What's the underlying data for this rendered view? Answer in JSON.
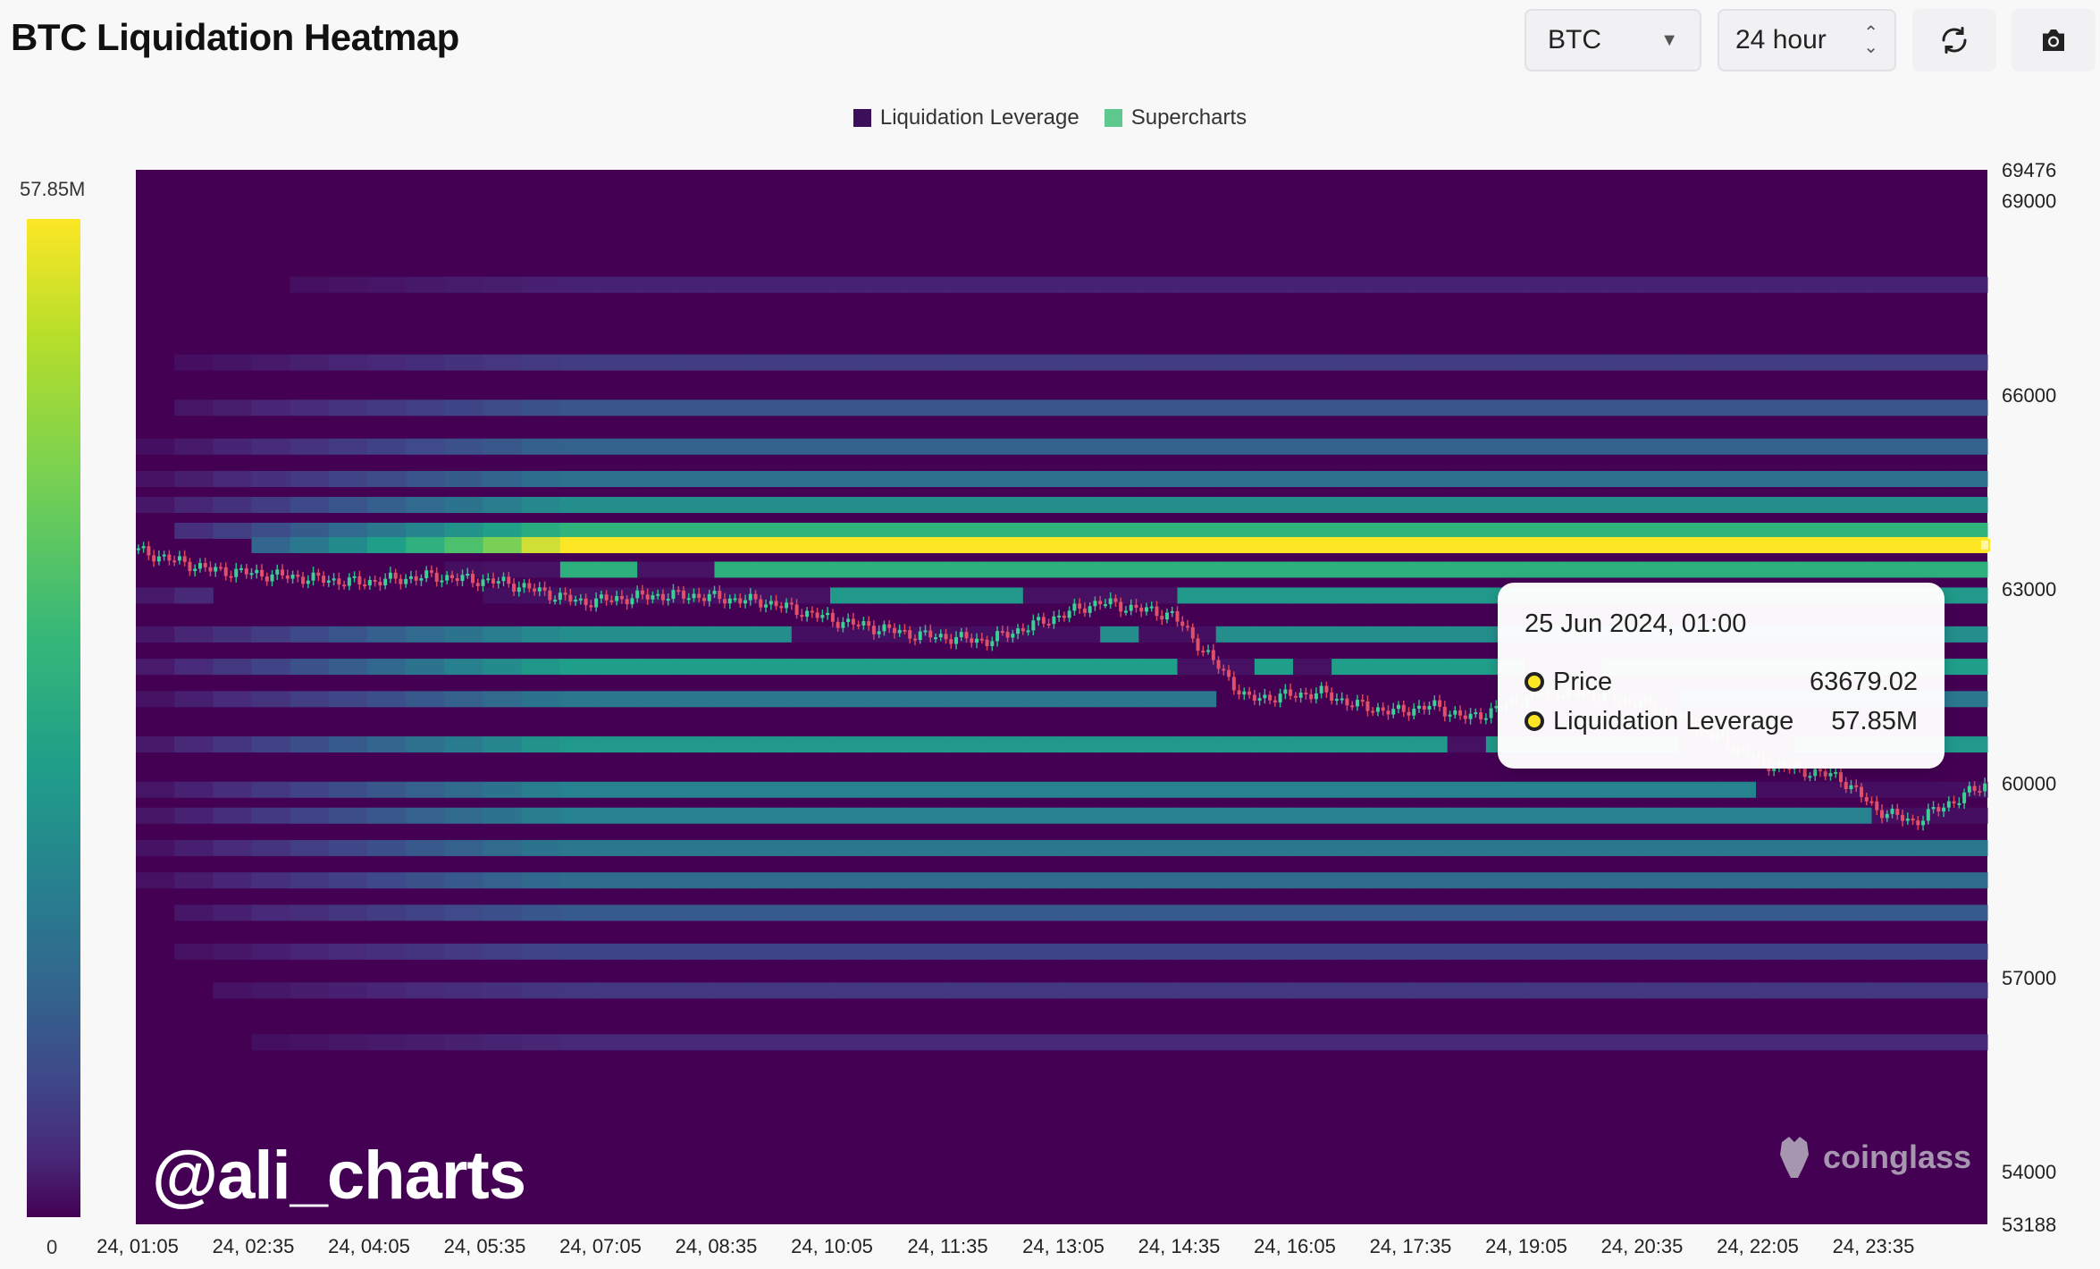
{
  "header": {
    "title": "BTC Liquidation Heatmap",
    "symbol_select": "BTC",
    "range_select": "24 hour",
    "icons": [
      "refresh-icon",
      "camera-icon"
    ]
  },
  "legend": {
    "items": [
      {
        "label": "Liquidation Leverage",
        "color": "#3b0f5a"
      },
      {
        "label": "Supercharts",
        "color": "#5ec98f"
      }
    ]
  },
  "color_scale": {
    "max_label": "57.85M",
    "min_label": "0"
  },
  "tooltip": {
    "date": "25 Jun 2024, 01:00",
    "rows": [
      {
        "label": "Price",
        "value": "63679.02"
      },
      {
        "label": "Liquidation Leverage",
        "value": "57.85M"
      }
    ]
  },
  "watermark": "@ali_charts",
  "brand": "coinglass",
  "chart_data": {
    "type": "heatmap",
    "title": "BTC Liquidation Heatmap",
    "x_ticks": [
      "24, 01:05",
      "24, 02:35",
      "24, 04:05",
      "24, 05:35",
      "24, 07:05",
      "24, 08:35",
      "24, 10:05",
      "24, 11:35",
      "24, 13:05",
      "24, 14:35",
      "24, 16:05",
      "24, 17:35",
      "24, 19:05",
      "24, 20:35",
      "24, 22:05",
      "24, 23:35"
    ],
    "y_ticks": [
      69476,
      69000,
      66000,
      63000,
      60000,
      57000,
      54000,
      53188
    ],
    "ylim": [
      53188,
      69476
    ],
    "colorbar_range": [
      0,
      57.85
    ],
    "colorbar_unit": "M",
    "bands": [
      {
        "price": 67700,
        "intensity": 0.1
      },
      {
        "price": 66500,
        "intensity": 0.2
      },
      {
        "price": 65800,
        "intensity": 0.3
      },
      {
        "price": 65200,
        "intensity": 0.36
      },
      {
        "price": 64700,
        "intensity": 0.42
      },
      {
        "price": 64300,
        "intensity": 0.55
      },
      {
        "price": 63900,
        "intensity": 0.72
      },
      {
        "price": 63679,
        "intensity": 1.0
      },
      {
        "price": 63300,
        "intensity": 0.7
      },
      {
        "price": 62900,
        "intensity": 0.6
      },
      {
        "price": 62300,
        "intensity": 0.55
      },
      {
        "price": 61800,
        "intensity": 0.62
      },
      {
        "price": 61300,
        "intensity": 0.45
      },
      {
        "price": 60600,
        "intensity": 0.6
      },
      {
        "price": 59900,
        "intensity": 0.5
      },
      {
        "price": 59500,
        "intensity": 0.5
      },
      {
        "price": 59000,
        "intensity": 0.45
      },
      {
        "price": 58500,
        "intensity": 0.4
      },
      {
        "price": 58000,
        "intensity": 0.32
      },
      {
        "price": 57400,
        "intensity": 0.24
      },
      {
        "price": 56800,
        "intensity": 0.18
      },
      {
        "price": 56000,
        "intensity": 0.12
      }
    ],
    "price_series": {
      "name": "Supercharts",
      "time_fraction": [
        0,
        0.04,
        0.08,
        0.12,
        0.16,
        0.2,
        0.24,
        0.28,
        0.3,
        0.34,
        0.38,
        0.42,
        0.46,
        0.48,
        0.5,
        0.52,
        0.56,
        0.6,
        0.64,
        0.66,
        0.68,
        0.7,
        0.72,
        0.74,
        0.76,
        0.78,
        0.8,
        0.82,
        0.84,
        0.86,
        0.88,
        0.9,
        0.92,
        0.94,
        0.96,
        1.0
      ],
      "values": [
        63600,
        63300,
        63200,
        63100,
        63200,
        63100,
        62800,
        62900,
        62900,
        62800,
        62500,
        62300,
        62200,
        62400,
        62600,
        62800,
        62600,
        61300,
        61400,
        61200,
        61100,
        61200,
        61000,
        61200,
        61400,
        61400,
        61300,
        61200,
        60900,
        60600,
        60300,
        60200,
        60100,
        59600,
        59400,
        60000
      ]
    }
  }
}
